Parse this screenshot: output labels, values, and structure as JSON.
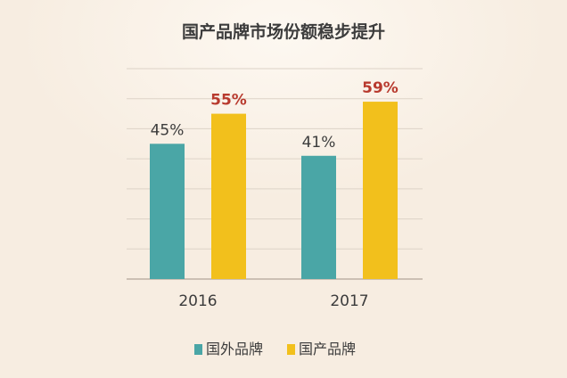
{
  "chart_data": {
    "type": "bar",
    "title": "国产品牌市场份额稳步提升",
    "categories": [
      "2016",
      "2017"
    ],
    "series": [
      {
        "name": "国外品牌",
        "values": [
          45,
          41
        ],
        "labels": [
          "45%",
          "41%"
        ],
        "color": "#4aa6a6",
        "label_color": "#3c3c3c"
      },
      {
        "name": "国产品牌",
        "values": [
          55,
          59
        ],
        "labels": [
          "55%",
          "59%"
        ],
        "color": "#f2c01c",
        "label_color": "#b83a2e"
      }
    ],
    "ylim": [
      0,
      70
    ],
    "grid": true,
    "legend_position": "bottom"
  }
}
